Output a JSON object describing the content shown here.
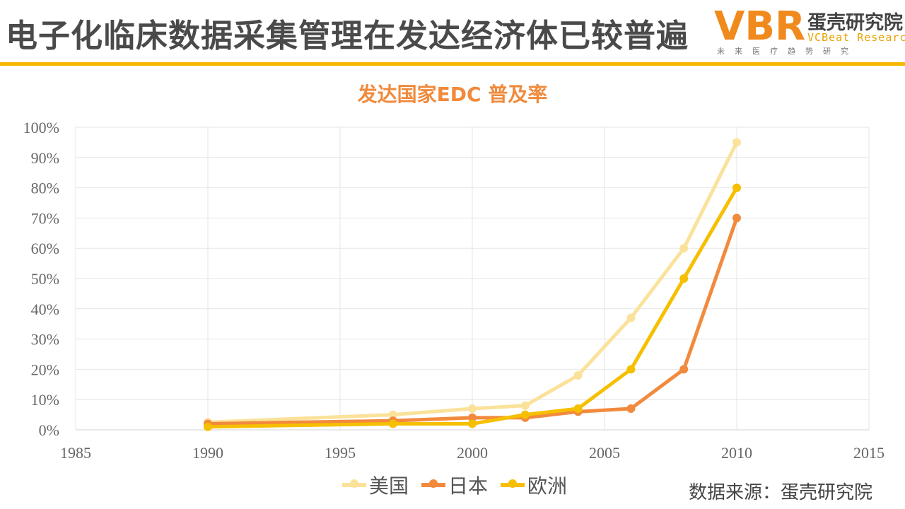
{
  "header": {
    "title": "电子化临床数据采集管理在发达经济体已较普遍",
    "logo_mark": "VBR",
    "logo_name": "蛋壳研究院",
    "logo_en": "VCBeat Research",
    "logo_tagline": "未来医疗趋势研究"
  },
  "source": "数据来源：蛋壳研究院",
  "colors": {
    "accent": "#f6b800",
    "title_orange": "#f08a3c"
  },
  "chart_data": {
    "type": "line",
    "title": "发达国家EDC 普及率",
    "xlabel": "",
    "ylabel": "",
    "xlim": [
      1985,
      2015
    ],
    "ylim": [
      0,
      100
    ],
    "x_ticks": [
      "1985",
      "1990",
      "1995",
      "2000",
      "2005",
      "2010",
      "2015"
    ],
    "y_ticks": [
      "0%",
      "10%",
      "20%",
      "30%",
      "40%",
      "50%",
      "60%",
      "70%",
      "80%",
      "90%",
      "100%"
    ],
    "grid": true,
    "legend_position": "bottom",
    "series": [
      {
        "name": "美国",
        "color": "#fbe29a",
        "x": [
          1990,
          1997,
          2000,
          2002,
          2004,
          2006,
          2008,
          2010
        ],
        "y": [
          2.5,
          5,
          7,
          8,
          18,
          37,
          60,
          95
        ]
      },
      {
        "name": "日本",
        "color": "#f28a3e",
        "x": [
          1990,
          1997,
          2000,
          2002,
          2004,
          2006,
          2008,
          2010
        ],
        "y": [
          2,
          3,
          4,
          4,
          6,
          7,
          20,
          70
        ]
      },
      {
        "name": "欧洲",
        "color": "#f6bf00",
        "x": [
          1990,
          1997,
          2000,
          2002,
          2004,
          2006,
          2008,
          2010
        ],
        "y": [
          1,
          2,
          2,
          5,
          7,
          20,
          50,
          80
        ]
      }
    ]
  }
}
